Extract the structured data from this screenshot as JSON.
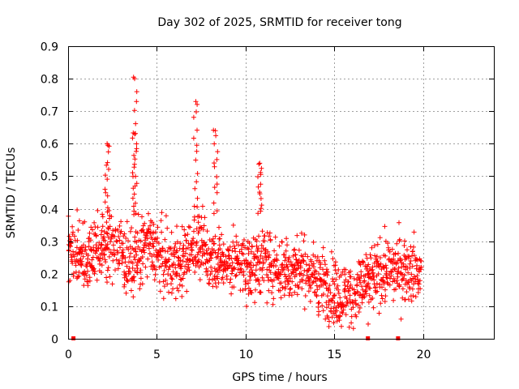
{
  "chart_data": {
    "type": "scatter",
    "title": "Day 302 of 2025, SRMTID for receiver tong",
    "xlabel": "GPS time / hours",
    "ylabel": "SRMTID / TECUs",
    "xlim": [
      0,
      24
    ],
    "ylim": [
      0,
      0.9
    ],
    "x_ticks": [
      0,
      5,
      10,
      15,
      20
    ],
    "x_tick_labels": [
      "0",
      "5",
      "10",
      "15",
      "20"
    ],
    "y_ticks": [
      0,
      0.1,
      0.2,
      0.3,
      0.4,
      0.5,
      0.6,
      0.7,
      0.8,
      0.9
    ],
    "y_tick_labels": [
      "0",
      "0.1",
      "0.2",
      "0.3",
      "0.4",
      "0.5",
      "0.6",
      "0.7",
      "0.8",
      "0.9"
    ],
    "grid": true,
    "marker": "+",
    "color": "#ff0000",
    "time_range_hours": [
      0,
      19.9
    ],
    "peaks": [
      {
        "x": 3.75,
        "y": 0.8
      },
      {
        "x": 7.2,
        "y": 0.73
      },
      {
        "x": 8.3,
        "y": 0.64
      },
      {
        "x": 3.75,
        "y": 0.63
      },
      {
        "x": 2.2,
        "y": 0.6
      },
      {
        "x": 10.8,
        "y": 0.54
      }
    ],
    "baseline_markers_x": [
      0.3,
      16.9,
      18.6
    ],
    "series": [
      {
        "name": "SRMTID",
        "profile": [
          {
            "x": 0.0,
            "y": 0.28
          },
          {
            "x": 1.0,
            "y": 0.25
          },
          {
            "x": 2.0,
            "y": 0.29
          },
          {
            "x": 3.0,
            "y": 0.27
          },
          {
            "x": 3.5,
            "y": 0.22
          },
          {
            "x": 4.5,
            "y": 0.3
          },
          {
            "x": 5.5,
            "y": 0.23
          },
          {
            "x": 6.5,
            "y": 0.24
          },
          {
            "x": 7.2,
            "y": 0.3
          },
          {
            "x": 8.0,
            "y": 0.25
          },
          {
            "x": 9.0,
            "y": 0.24
          },
          {
            "x": 10.0,
            "y": 0.22
          },
          {
            "x": 11.0,
            "y": 0.24
          },
          {
            "x": 12.0,
            "y": 0.21
          },
          {
            "x": 13.0,
            "y": 0.22
          },
          {
            "x": 14.0,
            "y": 0.19
          },
          {
            "x": 15.0,
            "y": 0.14
          },
          {
            "x": 16.0,
            "y": 0.13
          },
          {
            "x": 17.0,
            "y": 0.18
          },
          {
            "x": 18.0,
            "y": 0.21
          },
          {
            "x": 19.0,
            "y": 0.22
          },
          {
            "x": 19.9,
            "y": 0.21
          }
        ]
      }
    ]
  }
}
